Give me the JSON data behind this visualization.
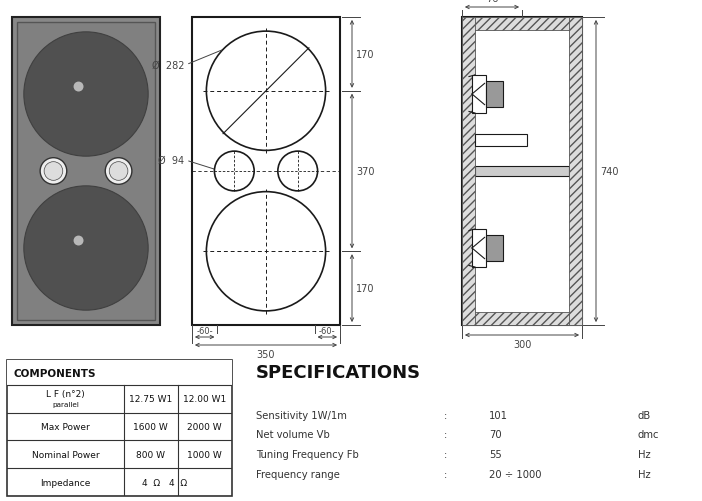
{
  "bg_color": "#ffffff",
  "components_table": {
    "header": "COMPONENTS",
    "rows": [
      [
        "L F (n°2)\nparallel",
        "12.75 W1",
        "12.00 W1"
      ],
      [
        "Max Power",
        "1600 W",
        "2000 W"
      ],
      [
        "Nominal Power",
        "800 W",
        "1000 W"
      ],
      [
        "Impedance",
        "4  Ω",
        ""
      ]
    ]
  },
  "specs_title": "SPECIFICATIONS",
  "specs": [
    [
      "Sensitivity 1W/1m",
      ":",
      "101",
      "dB"
    ],
    [
      "Net volume Vb",
      ":",
      "70",
      "dmc"
    ],
    [
      "Tuning Frequency Fb",
      ":",
      "55",
      "Hz"
    ],
    [
      "Frequency range",
      ":",
      "20 ÷ 1000",
      "Hz"
    ]
  ],
  "dim_color": "#444444",
  "line_color": "#1a1a1a"
}
